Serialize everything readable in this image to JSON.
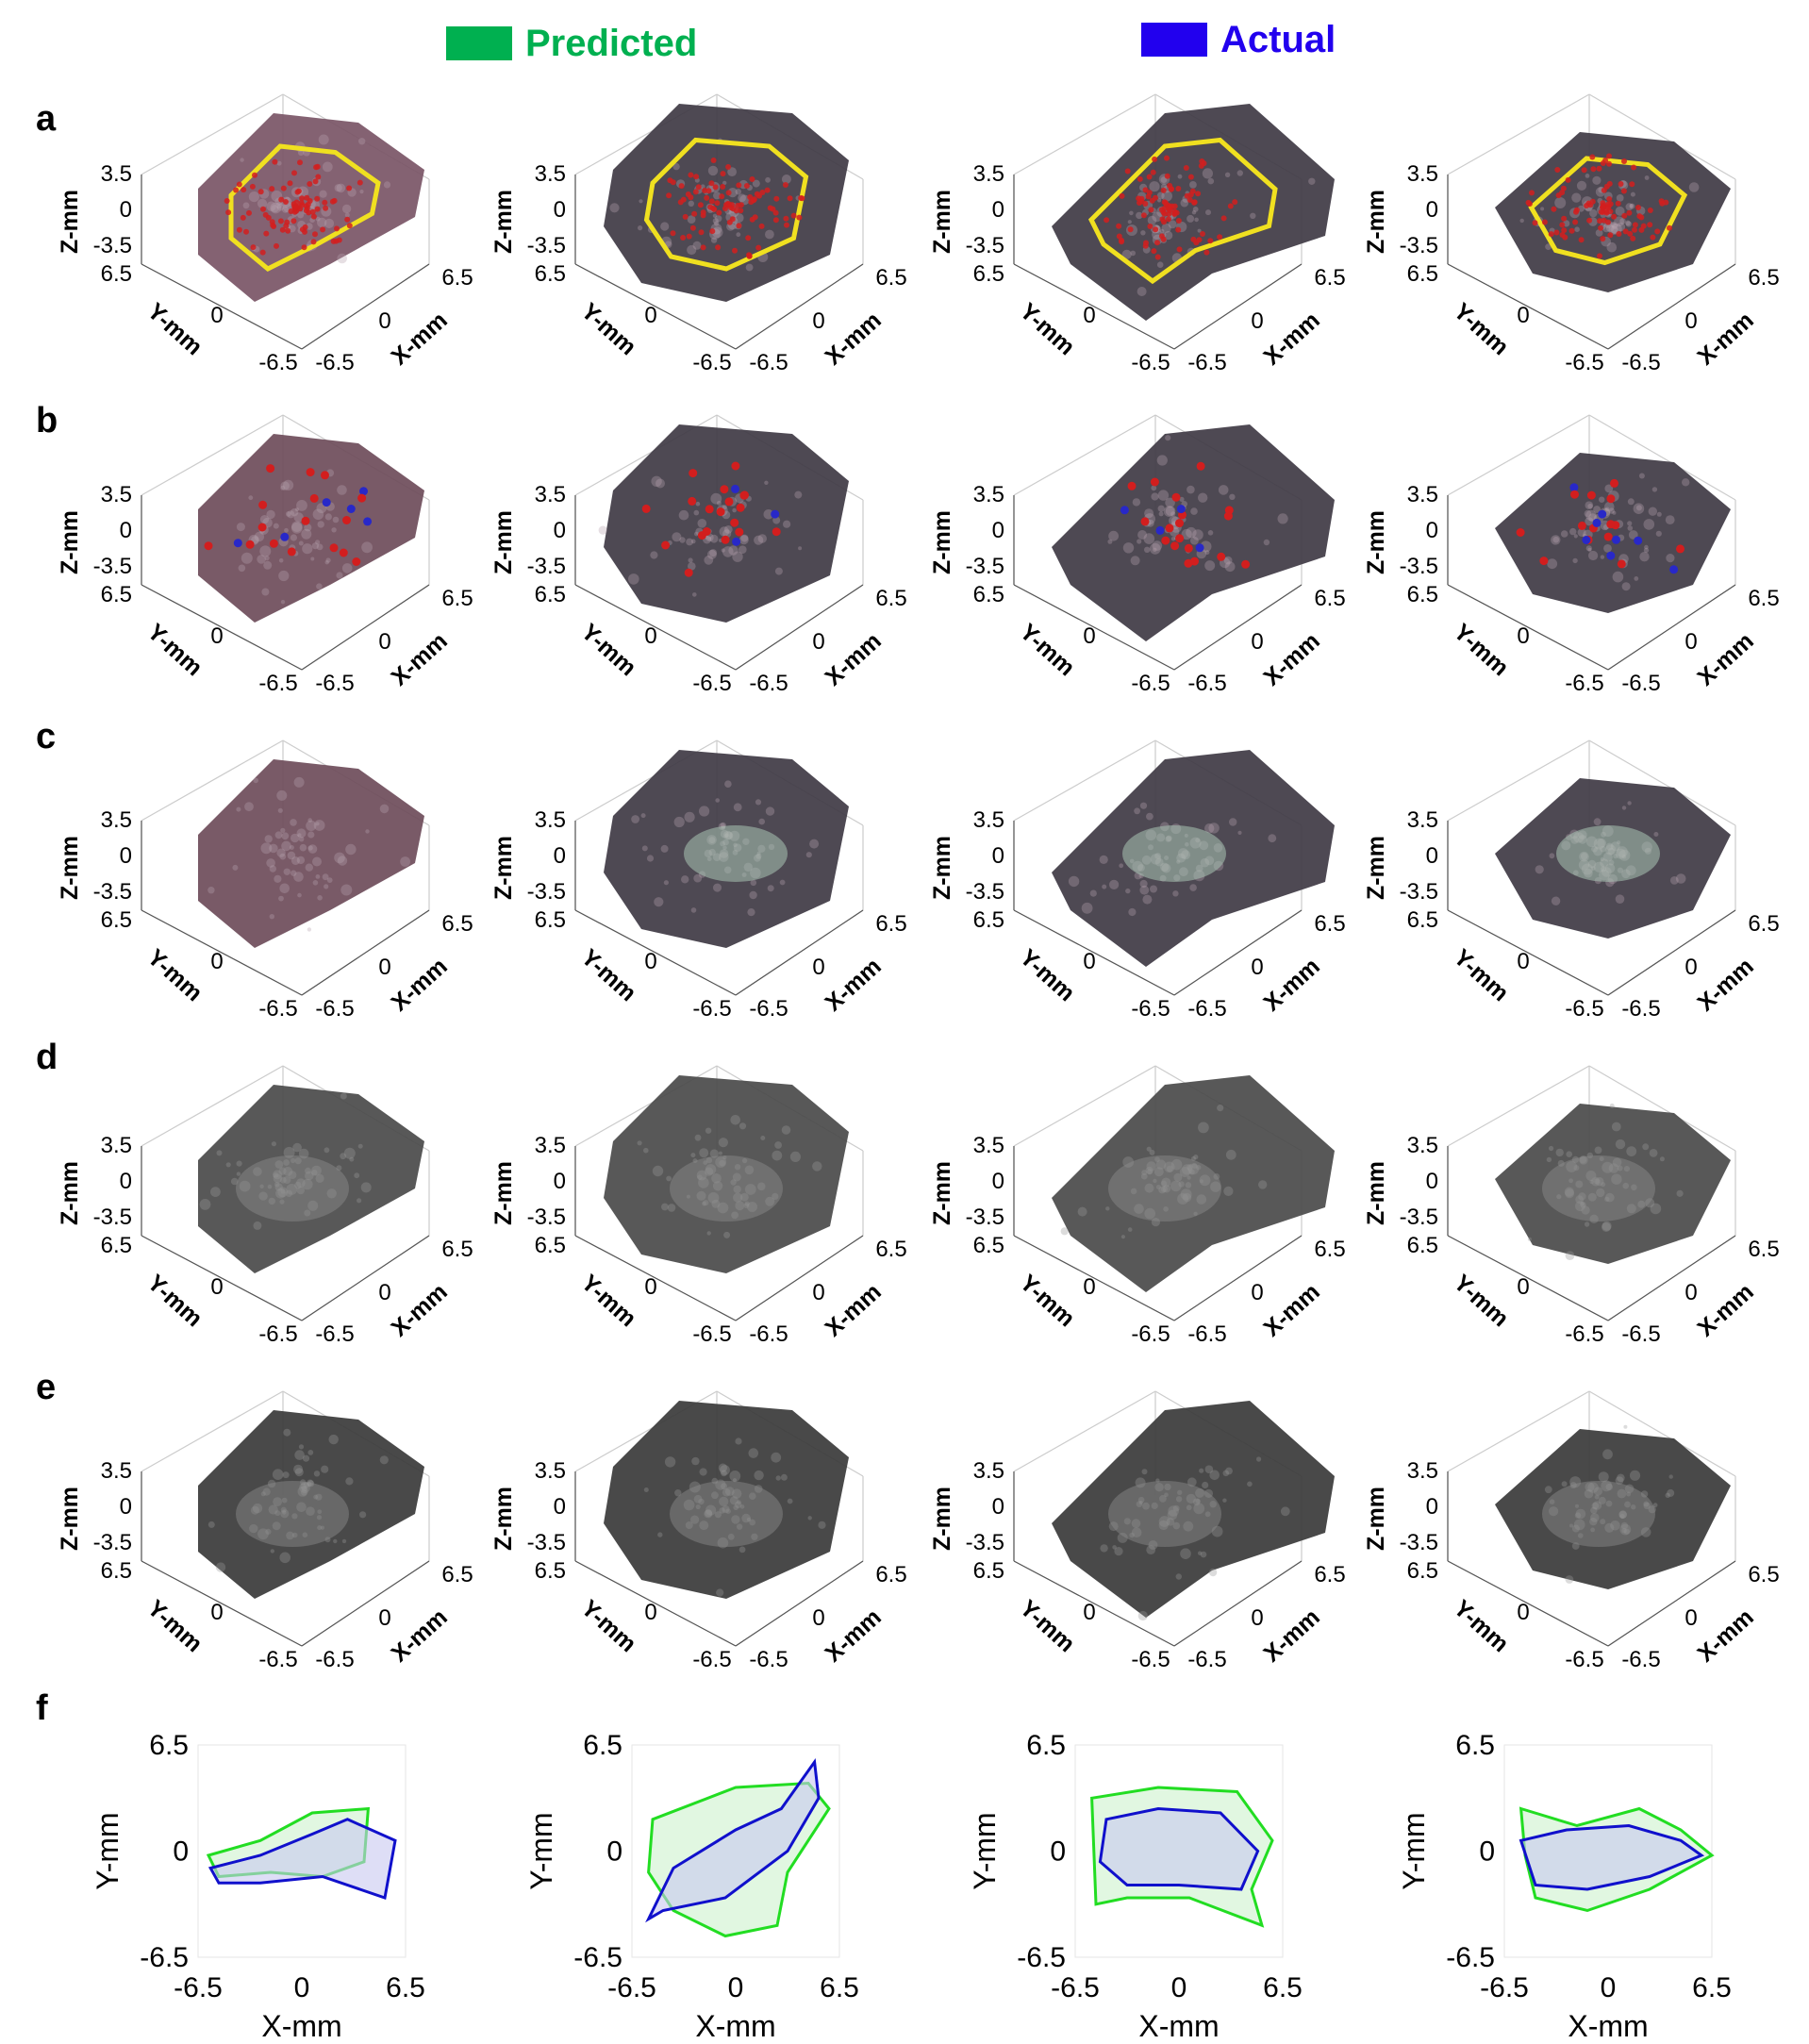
{
  "legend": {
    "predicted": {
      "label": "Predicted",
      "color": "#00b050"
    },
    "actual": {
      "label": "Actual",
      "color": "#2200ee"
    }
  },
  "rows": [
    {
      "id": "a",
      "label": "a",
      "style": "color-dots-boundary"
    },
    {
      "id": "b",
      "label": "b",
      "style": "color-dots-sparse"
    },
    {
      "id": "c",
      "label": "c",
      "style": "color-texture"
    },
    {
      "id": "d",
      "label": "d",
      "style": "grayscale"
    },
    {
      "id": "e",
      "label": "e",
      "style": "grayscale-alt"
    },
    {
      "id": "f",
      "label": "f",
      "style": "2d-overlay"
    }
  ],
  "axes3d": {
    "z_label": "Z-mm",
    "y_label": "Y-mm",
    "x_label": "X-mm",
    "z_ticks": [
      "3.5",
      "0",
      "-3.5"
    ],
    "y_ticks": [
      "6.5",
      "0",
      "-6.5"
    ],
    "x_ticks": [
      "6.5",
      "0",
      "-6.5"
    ]
  },
  "axes2d": {
    "x_label": "X-mm",
    "y_label": "Y-mm",
    "x_ticks": [
      "-6.5",
      "0",
      "6.5"
    ],
    "y_ticks": [
      "6.5",
      "0",
      "-6.5"
    ]
  },
  "colors": {
    "tissue_a": "#6e4c5a",
    "tissue_dark": "#3f3a44",
    "red_dots": "#d21e1e",
    "blue_dots": "#2828c8",
    "yellow_boundary": "#f0e020",
    "green_predicted": "#22dd22",
    "blue_actual": "#1010cc"
  }
}
